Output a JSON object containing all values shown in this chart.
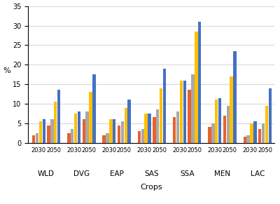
{
  "regions": [
    "WLD",
    "DVG",
    "EAP",
    "SAS",
    "SSA",
    "MEN",
    "LAC"
  ],
  "years": [
    "2030",
    "2050"
  ],
  "series": {
    "HIGH": {
      "color": "#E8612C",
      "values": {
        "WLD": [
          2.0,
          4.5
        ],
        "DVG": [
          2.5,
          6.0
        ],
        "EAP": [
          2.0,
          4.5
        ],
        "SAS": [
          3.0,
          6.5
        ],
        "SSA": [
          6.5,
          13.5
        ],
        "MEN": [
          4.0,
          7.0
        ],
        "LAC": [
          1.5,
          3.5
        ]
      }
    },
    "HIGH+NARS": {
      "color": "#A8A8A8",
      "values": {
        "WLD": [
          2.5,
          6.0
        ],
        "DVG": [
          3.5,
          8.0
        ],
        "EAP": [
          2.5,
          5.5
        ],
        "SAS": [
          3.5,
          8.5
        ],
        "SSA": [
          8.0,
          17.5
        ],
        "MEN": [
          5.0,
          9.5
        ],
        "LAC": [
          2.0,
          5.0
        ]
      }
    },
    "HIGH+NARS+REFF": {
      "color": "#FFC000",
      "values": {
        "WLD": [
          5.5,
          10.5
        ],
        "DVG": [
          7.5,
          13.0
        ],
        "EAP": [
          6.0,
          9.0
        ],
        "SAS": [
          7.5,
          14.0
        ],
        "SSA": [
          16.0,
          28.5
        ],
        "MEN": [
          11.0,
          17.0
        ],
        "LAC": [
          5.0,
          9.5
        ]
      }
    },
    "HIGH+NARS+REFF+PRIV": {
      "color": "#4472C4",
      "values": {
        "WLD": [
          6.0,
          13.5
        ],
        "DVG": [
          8.0,
          17.5
        ],
        "EAP": [
          6.0,
          11.0
        ],
        "SAS": [
          7.5,
          19.0
        ],
        "SSA": [
          16.0,
          31.0
        ],
        "MEN": [
          11.5,
          23.5
        ],
        "LAC": [
          5.5,
          14.0
        ]
      }
    }
  },
  "ylabel": "%",
  "xlabel": "Crops",
  "ylim": [
    0,
    35
  ],
  "yticks": [
    0,
    5,
    10,
    15,
    20,
    25,
    30,
    35
  ],
  "background_color": "#ffffff",
  "grid_color": "#d9d9d9"
}
